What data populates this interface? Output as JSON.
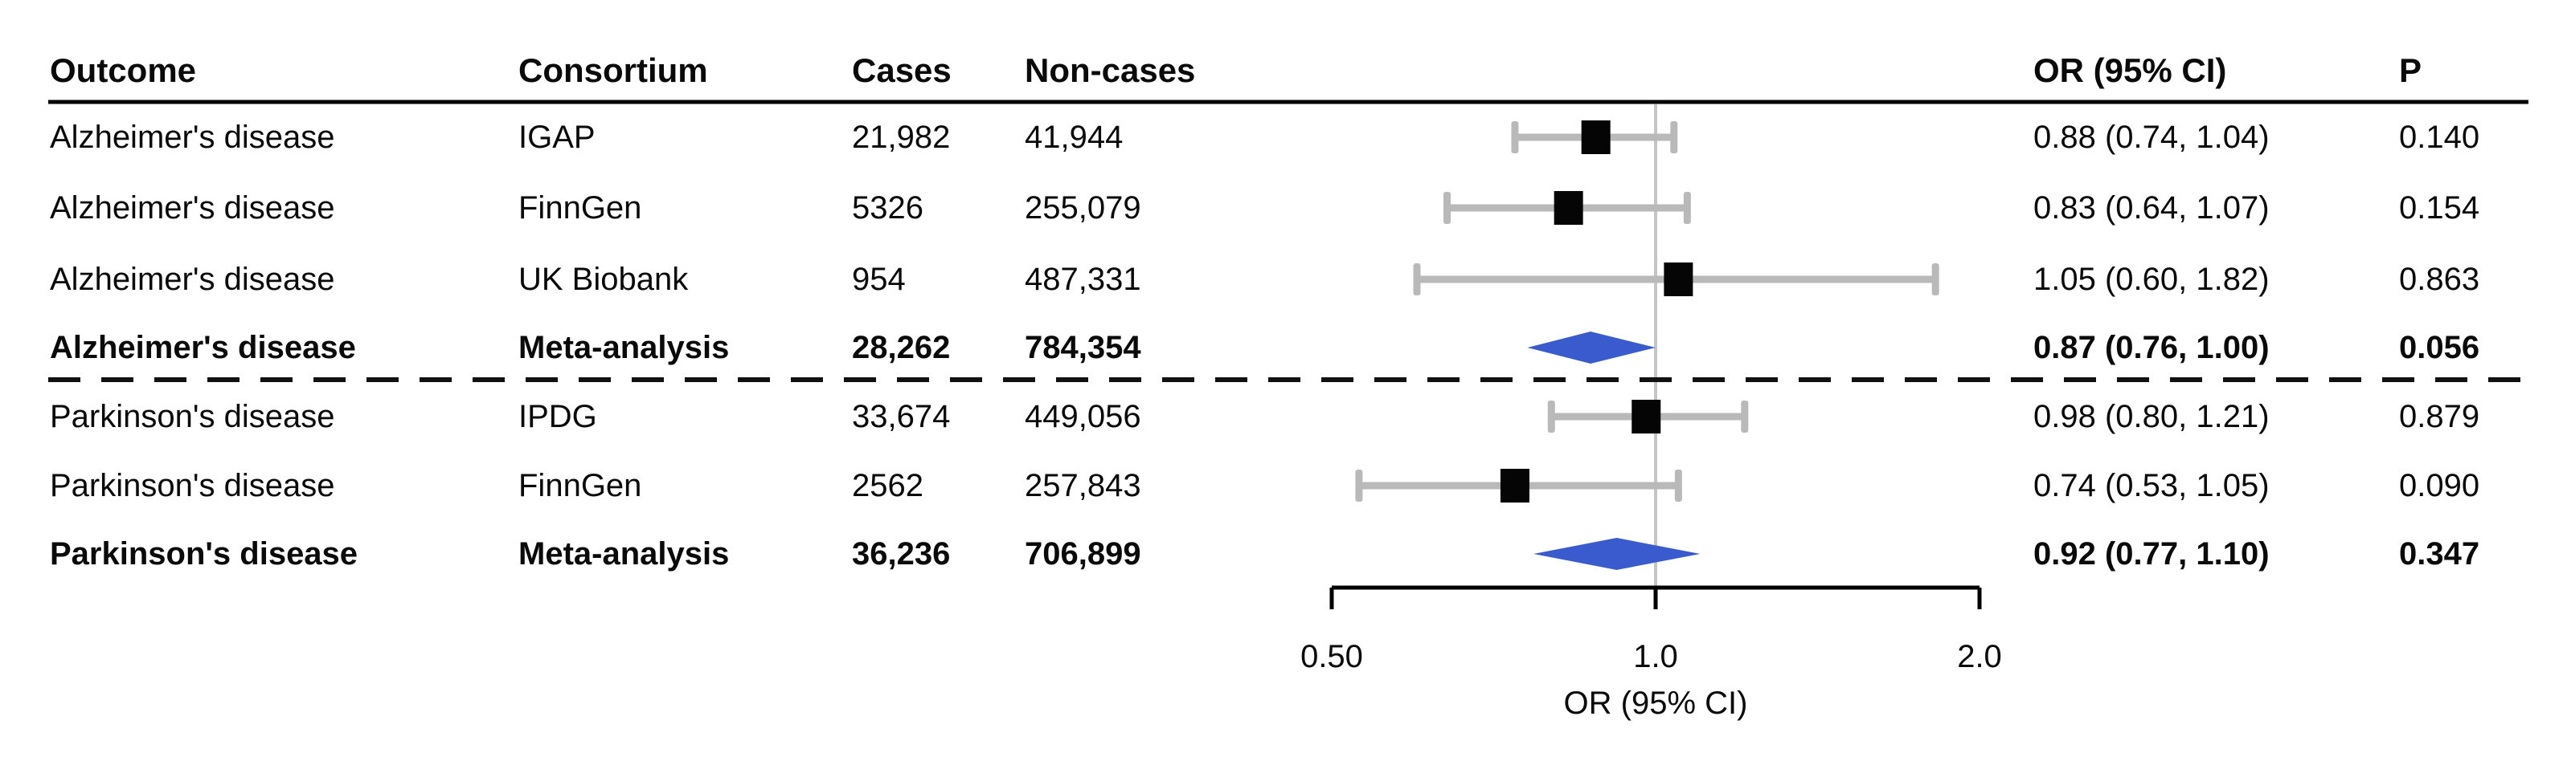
{
  "chart_data": {
    "type": "forest",
    "title": "",
    "columns": {
      "outcome": "Outcome",
      "consortium": "Consortium",
      "cases": "Cases",
      "noncases": "Non-cases",
      "or_ci": "OR (95% CI)",
      "p": "P"
    },
    "rows": [
      {
        "outcome": "Alzheimer's disease",
        "consortium": "IGAP",
        "cases": "21,982",
        "noncases": "41,944",
        "or": 0.88,
        "ci_low": 0.74,
        "ci_high": 1.04,
        "or_ci": "0.88 (0.74, 1.04)",
        "p": "0.140",
        "style": "study"
      },
      {
        "outcome": "Alzheimer's disease",
        "consortium": "FinnGen",
        "cases": "5326",
        "noncases": "255,079",
        "or": 0.83,
        "ci_low": 0.64,
        "ci_high": 1.07,
        "or_ci": "0.83 (0.64, 1.07)",
        "p": "0.154",
        "style": "study"
      },
      {
        "outcome": "Alzheimer's disease",
        "consortium": "UK Biobank",
        "cases": "954",
        "noncases": "487,331",
        "or": 1.05,
        "ci_low": 0.6,
        "ci_high": 1.82,
        "or_ci": "1.05 (0.60, 1.82)",
        "p": "0.863",
        "style": "study"
      },
      {
        "outcome": "Alzheimer's disease",
        "consortium": "Meta-analysis",
        "cases": "28,262",
        "noncases": "784,354",
        "or": 0.87,
        "ci_low": 0.76,
        "ci_high": 1.0,
        "or_ci": "0.87 (0.76, 1.00)",
        "p": "0.056",
        "style": "meta"
      },
      {
        "outcome": "Parkinson's disease",
        "consortium": "IPDG",
        "cases": "33,674",
        "noncases": "449,056",
        "or": 0.98,
        "ci_low": 0.8,
        "ci_high": 1.21,
        "or_ci": "0.98 (0.80, 1.21)",
        "p": "0.879",
        "style": "study"
      },
      {
        "outcome": "Parkinson's disease",
        "consortium": "FinnGen",
        "cases": "2562",
        "noncases": "257,843",
        "or": 0.74,
        "ci_low": 0.53,
        "ci_high": 1.05,
        "or_ci": "0.74 (0.53, 1.05)",
        "p": "0.090",
        "style": "study"
      },
      {
        "outcome": "Parkinson's disease",
        "consortium": "Meta-analysis",
        "cases": "36,236",
        "noncases": "706,899",
        "or": 0.92,
        "ci_low": 0.77,
        "ci_high": 1.1,
        "or_ci": "0.92 (0.77, 1.10)",
        "p": "0.347",
        "style": "meta"
      }
    ],
    "dashed_divider_after_index": 3,
    "axis": {
      "scale": "log",
      "range": [
        0.5,
        2.0
      ],
      "reference_value": 1.0,
      "ticks": [
        {
          "label": "0.50",
          "value": 0.5
        },
        {
          "label": "1.0",
          "value": 1.0
        },
        {
          "label": "2.0",
          "value": 2.0
        }
      ],
      "title": "OR (95% CI)"
    },
    "colors": {
      "diamond": "#3a5bcd",
      "ci_bar": "#b9b9b9",
      "marker": "#050505",
      "reference_line": "#c5c5c5",
      "rule": "#000000",
      "dashed_divider": "#111111",
      "text": "#0a0a0a"
    }
  }
}
